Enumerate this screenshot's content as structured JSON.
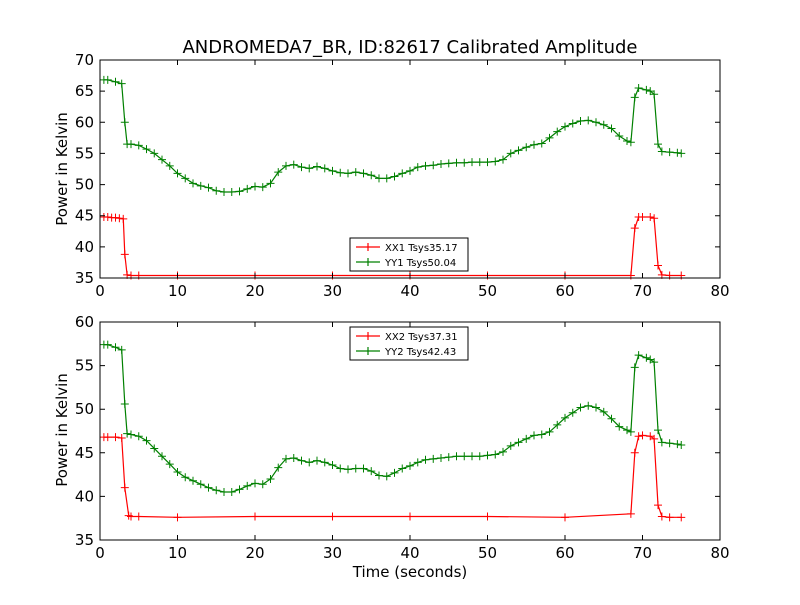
{
  "chart_data": {
    "title": "ANDROMEDA7_BR, ID:82617 Calibrated Amplitude",
    "colors": {
      "xx": "#ff0000",
      "yy": "#008000"
    },
    "panels": [
      {
        "type": "line",
        "ylabel": "Power in Kelvin",
        "xlabel": "",
        "xlim": [
          0,
          80
        ],
        "ylim": [
          35,
          70
        ],
        "xticks": [
          0,
          10,
          20,
          30,
          40,
          50,
          60,
          70,
          80
        ],
        "yticks": [
          35,
          40,
          45,
          50,
          55,
          60,
          65,
          70
        ],
        "legend_position": "lower-center",
        "series": [
          {
            "name": "XX1 Tsys35.17",
            "color_key": "xx",
            "x": [
              0.5,
              1.0,
              1.5,
              2.0,
              2.5,
              3.0,
              3.2,
              3.5,
              4.0,
              5.0,
              10.0,
              20.0,
              30.0,
              40.0,
              50.0,
              60.0,
              68.5,
              69.0,
              69.5,
              70.0,
              71.0,
              71.5,
              72.0,
              72.5,
              73.5,
              75.0
            ],
            "y": [
              44.8,
              44.8,
              44.7,
              44.7,
              44.6,
              44.5,
              38.8,
              35.5,
              35.4,
              35.4,
              35.4,
              35.4,
              35.4,
              35.4,
              35.4,
              35.4,
              35.4,
              43.0,
              44.8,
              44.8,
              44.8,
              44.6,
              37.0,
              35.5,
              35.4,
              35.4
            ]
          },
          {
            "name": "YY1 Tsys50.04",
            "color_key": "yy",
            "x": [
              0.5,
              1.0,
              2.0,
              2.8,
              3.2,
              3.5,
              4.0,
              5.0,
              6.0,
              7.0,
              8.0,
              9.0,
              10.0,
              11.0,
              12.0,
              13.0,
              14.0,
              15.0,
              16.0,
              17.0,
              18.0,
              19.0,
              20.0,
              21.0,
              22.0,
              23.0,
              24.0,
              25.0,
              26.0,
              27.0,
              28.0,
              29.0,
              30.0,
              31.0,
              32.0,
              33.0,
              34.0,
              35.0,
              36.0,
              37.0,
              38.0,
              39.0,
              40.0,
              41.0,
              42.0,
              43.0,
              44.0,
              45.0,
              46.0,
              47.0,
              48.0,
              49.0,
              50.0,
              51.0,
              52.0,
              53.0,
              54.0,
              55.0,
              56.0,
              57.0,
              58.0,
              59.0,
              60.0,
              61.0,
              62.0,
              63.0,
              64.0,
              65.0,
              66.0,
              67.0,
              68.0,
              68.5,
              69.0,
              69.5,
              70.5,
              71.0,
              71.5,
              72.0,
              72.5,
              73.5,
              74.5,
              75.0
            ],
            "y": [
              66.8,
              66.8,
              66.5,
              66.2,
              60.0,
              56.5,
              56.5,
              56.3,
              55.7,
              55.0,
              54.0,
              53.0,
              51.8,
              51.0,
              50.2,
              49.8,
              49.5,
              49.0,
              48.8,
              48.8,
              48.9,
              49.3,
              49.7,
              49.6,
              50.2,
              52.0,
              53.0,
              53.2,
              52.8,
              52.6,
              52.9,
              52.6,
              52.2,
              51.9,
              51.8,
              52.0,
              51.8,
              51.5,
              51.0,
              51.0,
              51.3,
              51.8,
              52.2,
              52.8,
              53.0,
              53.1,
              53.3,
              53.4,
              53.5,
              53.5,
              53.6,
              53.6,
              53.6,
              53.7,
              54.0,
              55.0,
              55.5,
              56.0,
              56.4,
              56.6,
              57.5,
              58.5,
              59.3,
              59.8,
              60.2,
              60.3,
              60.0,
              59.6,
              59.0,
              57.8,
              57.0,
              56.8,
              64.0,
              65.5,
              65.2,
              65.0,
              64.5,
              56.5,
              55.3,
              55.2,
              55.1,
              55.0
            ]
          }
        ]
      },
      {
        "type": "line",
        "ylabel": "Power in Kelvin",
        "xlabel": "Time (seconds)",
        "xlim": [
          0,
          80
        ],
        "ylim": [
          35,
          60
        ],
        "xticks": [
          0,
          10,
          20,
          30,
          40,
          50,
          60,
          70,
          80
        ],
        "yticks": [
          35,
          40,
          45,
          50,
          55,
          60
        ],
        "legend_position": "upper-center",
        "series": [
          {
            "name": "XX2 Tsys37.31",
            "color_key": "xx",
            "x": [
              0.5,
              1.0,
              2.0,
              2.8,
              3.2,
              3.7,
              4.0,
              5.0,
              10.0,
              20.0,
              30.0,
              40.0,
              50.0,
              60.0,
              68.5,
              69.0,
              69.5,
              70.0,
              71.0,
              71.5,
              72.0,
              72.5,
              73.5,
              75.0
            ],
            "y": [
              46.8,
              46.8,
              46.8,
              46.7,
              41.0,
              37.8,
              37.7,
              37.7,
              37.6,
              37.7,
              37.7,
              37.7,
              37.7,
              37.6,
              38.0,
              45.0,
              46.9,
              47.0,
              46.9,
              46.6,
              39.0,
              37.7,
              37.6,
              37.6
            ]
          },
          {
            "name": "YY2 Tsys42.43",
            "color_key": "yy",
            "x": [
              0.5,
              1.0,
              2.0,
              2.8,
              3.2,
              3.5,
              4.0,
              5.0,
              6.0,
              7.0,
              8.0,
              9.0,
              10.0,
              11.0,
              12.0,
              13.0,
              14.0,
              15.0,
              16.0,
              17.0,
              18.0,
              19.0,
              20.0,
              21.0,
              22.0,
              23.0,
              24.0,
              25.0,
              26.0,
              27.0,
              28.0,
              29.0,
              30.0,
              31.0,
              32.0,
              33.0,
              34.0,
              35.0,
              36.0,
              37.0,
              38.0,
              39.0,
              40.0,
              41.0,
              42.0,
              43.0,
              44.0,
              45.0,
              46.0,
              47.0,
              48.0,
              49.0,
              50.0,
              51.0,
              52.0,
              53.0,
              54.0,
              55.0,
              56.0,
              57.0,
              58.0,
              59.0,
              60.0,
              61.0,
              62.0,
              63.0,
              64.0,
              65.0,
              66.0,
              67.0,
              68.0,
              68.5,
              69.0,
              69.5,
              70.5,
              71.0,
              71.5,
              72.0,
              72.5,
              73.5,
              74.5,
              75.0
            ],
            "y": [
              57.4,
              57.4,
              57.1,
              56.8,
              50.6,
              47.2,
              47.1,
              46.9,
              46.4,
              45.5,
              44.6,
              43.7,
              42.8,
              42.2,
              41.8,
              41.4,
              41.0,
              40.7,
              40.5,
              40.5,
              40.8,
              41.2,
              41.5,
              41.4,
              42.0,
              43.3,
              44.3,
              44.4,
              44.1,
              43.9,
              44.1,
              43.9,
              43.6,
              43.2,
              43.1,
              43.2,
              43.2,
              42.9,
              42.4,
              42.3,
              42.7,
              43.2,
              43.5,
              43.9,
              44.2,
              44.3,
              44.4,
              44.5,
              44.6,
              44.6,
              44.6,
              44.6,
              44.7,
              44.8,
              45.1,
              45.8,
              46.2,
              46.6,
              47.0,
              47.1,
              47.4,
              48.2,
              49.0,
              49.6,
              50.2,
              50.4,
              50.2,
              49.7,
              48.9,
              48.0,
              47.6,
              47.4,
              54.8,
              56.2,
              55.9,
              55.7,
              55.4,
              47.6,
              46.2,
              46.1,
              46.0,
              45.9
            ]
          }
        ]
      }
    ]
  }
}
